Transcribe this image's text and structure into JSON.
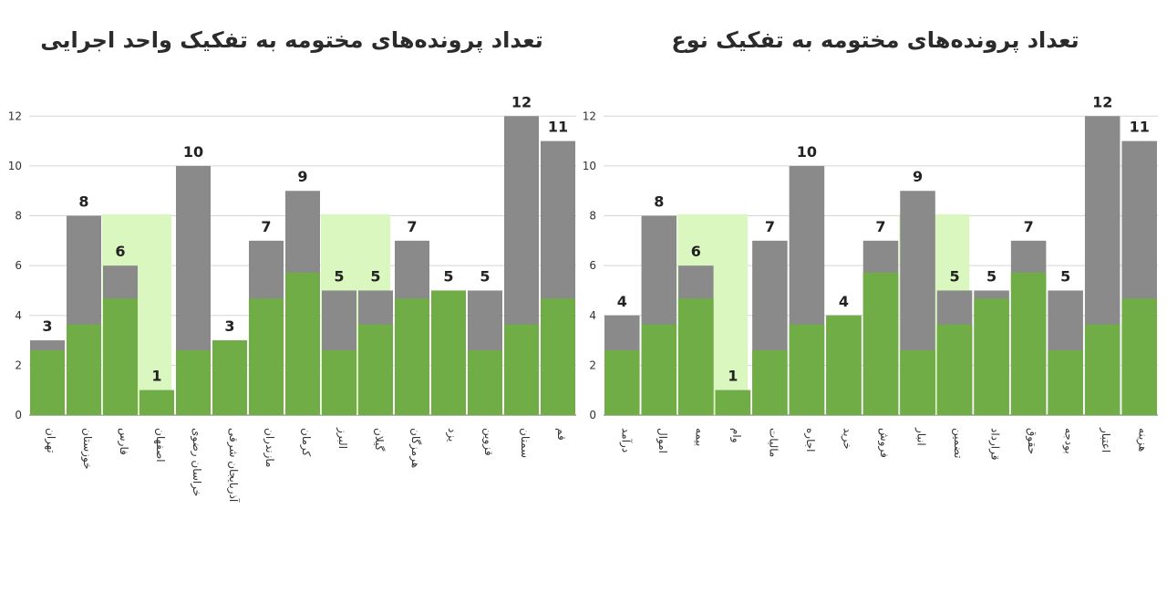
{
  "chart_data": [
    {
      "type": "bar",
      "title": "تعداد پرونده‌های مختومه به تفکیک واحد اجرایی",
      "categories": [
        "تهران",
        "خوزستان",
        "فارس",
        "اصفهان",
        "خراسان رضوی",
        "آذربایجان شرقی",
        "مازندران",
        "کرمان",
        "البرز",
        "گیلان",
        "هرمزگان",
        "یزد",
        "قزوین",
        "سمنان",
        "قم"
      ],
      "values": [
        3,
        8,
        6,
        1,
        10,
        3,
        7,
        9,
        5,
        5,
        7,
        5,
        5,
        12,
        11
      ],
      "ylim": [
        0,
        13
      ],
      "yticks": [
        "0",
        "2",
        "4",
        "6",
        "8",
        "10",
        "12"
      ],
      "grid": true,
      "colors": {
        "gray": "#8a8a8a",
        "green": "#70ad47",
        "light": "#d9f7be"
      }
    },
    {
      "type": "bar",
      "title": "تعداد پرونده‌های مختومه به تفکیک نوع",
      "categories": [
        "درآمد",
        "اموال",
        "بیمه",
        "وام",
        "مالیات",
        "اجاره",
        "خرید",
        "فروش",
        "انبار",
        "تضمین",
        "قرارداد",
        "حقوق",
        "بودجه",
        "اعتبار",
        "هزینه"
      ],
      "values": [
        4,
        8,
        6,
        1,
        7,
        10,
        4,
        7,
        9,
        5,
        5,
        7,
        5,
        12,
        11
      ],
      "ylim": [
        0,
        13
      ],
      "yticks": [
        "0",
        "2",
        "4",
        "6",
        "8",
        "10",
        "12"
      ],
      "grid": true,
      "colors": {
        "gray": "#8a8a8a",
        "green": "#70ad47",
        "light": "#d9f7be"
      }
    }
  ]
}
